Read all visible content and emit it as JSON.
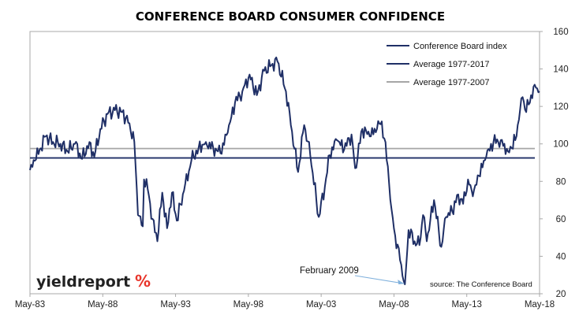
{
  "chart_data": {
    "type": "line",
    "title": "CONFERENCE BOARD CONSUMER CONFIDENCE",
    "x_tick_labels": [
      "May-83",
      "May-88",
      "May-93",
      "May-98",
      "May-03",
      "May-08",
      "May-13",
      "May-18"
    ],
    "x_range": [
      "1983-05",
      "2018-05"
    ],
    "y_ticks": [
      20,
      40,
      60,
      80,
      100,
      120,
      140,
      160
    ],
    "ylim": [
      20,
      160
    ],
    "y_axis_side": "right",
    "grid": false,
    "legend_position": "top-right",
    "series": [
      {
        "name": "Conference Board index",
        "color": "#1f2f66",
        "points": [
          [
            "1983-05",
            86
          ],
          [
            "1983-09",
            91
          ],
          [
            "1984-01",
            97
          ],
          [
            "1984-06",
            104
          ],
          [
            "1984-12",
            101
          ],
          [
            "1985-06",
            100
          ],
          [
            "1985-12",
            96
          ],
          [
            "1986-06",
            100
          ],
          [
            "1986-12",
            92
          ],
          [
            "1987-06",
            101
          ],
          [
            "1987-10",
            93
          ],
          [
            "1988-03",
            108
          ],
          [
            "1988-09",
            116
          ],
          [
            "1989-03",
            118
          ],
          [
            "1989-09",
            117
          ],
          [
            "1990-03",
            111
          ],
          [
            "1990-07",
            101
          ],
          [
            "1990-10",
            62
          ],
          [
            "1991-02",
            56
          ],
          [
            "1991-03",
            81
          ],
          [
            "1991-06",
            76
          ],
          [
            "1991-10",
            60
          ],
          [
            "1992-02",
            48
          ],
          [
            "1992-06",
            74
          ],
          [
            "1992-10",
            55
          ],
          [
            "1993-02",
            74
          ],
          [
            "1993-06",
            59
          ],
          [
            "1993-12",
            75
          ],
          [
            "1994-06",
            91
          ],
          [
            "1994-12",
            98
          ],
          [
            "1995-06",
            101
          ],
          [
            "1995-12",
            98
          ],
          [
            "1996-06",
            95
          ],
          [
            "1996-12",
            106
          ],
          [
            "1997-06",
            122
          ],
          [
            "1997-12",
            128
          ],
          [
            "1998-06",
            137
          ],
          [
            "1998-12",
            126
          ],
          [
            "1999-06",
            139
          ],
          [
            "1999-12",
            142
          ],
          [
            "2000-05",
            144
          ],
          [
            "2000-12",
            128
          ],
          [
            "2001-04",
            110
          ],
          [
            "2001-10",
            85
          ],
          [
            "2002-03",
            110
          ],
          [
            "2002-08",
            94
          ],
          [
            "2003-03",
            61
          ],
          [
            "2003-08",
            77
          ],
          [
            "2003-12",
            94
          ],
          [
            "2004-06",
            102
          ],
          [
            "2004-12",
            97
          ],
          [
            "2005-06",
            105
          ],
          [
            "2005-09",
            87
          ],
          [
            "2006-03",
            108
          ],
          [
            "2006-09",
            104
          ],
          [
            "2007-03",
            108
          ],
          [
            "2007-07",
            112
          ],
          [
            "2007-12",
            88
          ],
          [
            "2008-03",
            65
          ],
          [
            "2008-06",
            51
          ],
          [
            "2008-10",
            38
          ],
          [
            "2009-02",
            25
          ],
          [
            "2009-05",
            54
          ],
          [
            "2009-10",
            48
          ],
          [
            "2010-02",
            46
          ],
          [
            "2010-05",
            62
          ],
          [
            "2010-08",
            48
          ],
          [
            "2011-02",
            70
          ],
          [
            "2011-08",
            45
          ],
          [
            "2011-12",
            61
          ],
          [
            "2012-05",
            64
          ],
          [
            "2012-10",
            73
          ],
          [
            "2013-02",
            68
          ],
          [
            "2013-06",
            81
          ],
          [
            "2013-10",
            72
          ],
          [
            "2014-03",
            83
          ],
          [
            "2014-09",
            93
          ],
          [
            "2015-03",
            101
          ],
          [
            "2015-09",
            102
          ],
          [
            "2016-03",
            96
          ],
          [
            "2016-09",
            102
          ],
          [
            "2016-12",
            113
          ],
          [
            "2017-03",
            125
          ],
          [
            "2017-06",
            117
          ],
          [
            "2017-10",
            126
          ],
          [
            "2018-02",
            130
          ],
          [
            "2018-05",
            128
          ]
        ]
      },
      {
        "name": "Average 1977-2017",
        "color": "#1f2f66",
        "level": 92.5
      },
      {
        "name": "Average 1977-2007",
        "color": "#a6a6a6",
        "level": 97.5
      }
    ],
    "annotations": [
      {
        "text": "February 2009",
        "x": "2009-02",
        "y": 25
      },
      {
        "text": "source: The Conference Board"
      }
    ]
  },
  "logo": {
    "text": "yieldreport",
    "symbol": "%"
  }
}
